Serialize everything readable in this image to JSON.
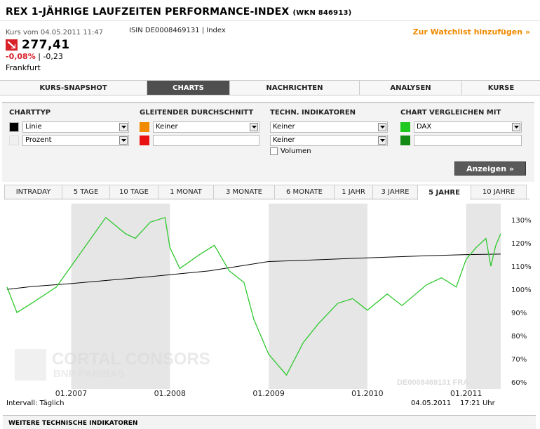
{
  "header": {
    "title": "REX 1-JÄHRIGE LAUFZEITEN PERFORMANCE-INDEX",
    "wkn": "(WKN 846913)",
    "watchlist_link": "Zur Watchlist hinzufügen »"
  },
  "quote": {
    "date": "Kurs vom 04.05.2011 11:47",
    "isin": "ISIN DE0008469131 | Index",
    "price": "277,41",
    "change_pct": "-0,08%",
    "change_sep": " | ",
    "change_abs": "-0,23",
    "exchange": "Frankfurt"
  },
  "tabs": [
    {
      "label": "KURS-SNAPSHOT",
      "active": false
    },
    {
      "label": "CHARTS",
      "active": true
    },
    {
      "label": "NACHRICHTEN",
      "active": false
    },
    {
      "label": "ANALYSEN",
      "active": false
    },
    {
      "label": "KURSE",
      "active": false
    }
  ],
  "settings": {
    "charttyp": {
      "heading": "CHARTTYP",
      "values": [
        "Linie",
        "Prozent"
      ],
      "colors": [
        "#000000",
        "#f0f0f0"
      ]
    },
    "gd": {
      "heading": "GLEITENDER DURCHSCHNITT",
      "value": "Keiner",
      "colors": [
        "#f08a00",
        "#e81010"
      ]
    },
    "indikatoren": {
      "heading": "TECHN. INDIKATOREN",
      "values": [
        "Keiner",
        "Keiner"
      ],
      "volume_label": "Volumen"
    },
    "vergleich": {
      "heading": "CHART VERGLEICHEN MIT",
      "value": "DAX",
      "colors": [
        "#1ec81e",
        "#138a13"
      ]
    },
    "show_button": "Anzeigen »"
  },
  "periods": [
    {
      "label": "INTRADAY",
      "active": false
    },
    {
      "label": "5 TAGE",
      "active": false
    },
    {
      "label": "10 TAGE",
      "active": false
    },
    {
      "label": "1 MONAT",
      "active": false
    },
    {
      "label": "3 MONATE",
      "active": false
    },
    {
      "label": "6 MONATE",
      "active": false
    },
    {
      "label": "1 JAHR",
      "active": false
    },
    {
      "label": "3 JAHRE",
      "active": false
    },
    {
      "label": "5 JAHRE",
      "active": true
    },
    {
      "label": "10 JAHRE",
      "active": false
    }
  ],
  "chart_data": {
    "type": "line",
    "x_ticks": [
      "01.2007",
      "01.2008",
      "01.2009",
      "01.2010",
      "01.2011"
    ],
    "y_ticks": [
      "130%",
      "120%",
      "110%",
      "100%",
      "90%",
      "80%",
      "70%",
      "60%"
    ],
    "ylim": [
      60,
      130
    ],
    "grid": false,
    "watermark": "CORTAL CONSORS",
    "watermark_sub": "BNP PARIBAS",
    "instrument_label": "DE0008469131 FRA",
    "x_start": 2006.35,
    "x_end": 2011.35,
    "shaded_years": [
      [
        2007.0,
        2008.0
      ],
      [
        2009.0,
        2010.0
      ],
      [
        2011.0,
        2011.35
      ]
    ],
    "series": [
      {
        "color": "#000000",
        "x": [
          2006.35,
          2006.6,
          2007.0,
          2007.4,
          2007.8,
          2008.0,
          2008.4,
          2008.7,
          2009.0,
          2009.4,
          2010.0,
          2010.6,
          2011.0,
          2011.35
        ],
        "y": [
          100.0,
          101.2,
          102.5,
          104.0,
          105.5,
          106.3,
          108.0,
          110.0,
          112.0,
          112.6,
          113.6,
          114.5,
          115.0,
          115.2
        ]
      },
      {
        "color": "#2ec82e",
        "x": [
          2006.35,
          2006.45,
          2006.6,
          2006.85,
          2007.0,
          2007.2,
          2007.35,
          2007.55,
          2007.65,
          2007.8,
          2007.95,
          2008.0,
          2008.1,
          2008.3,
          2008.45,
          2008.6,
          2008.75,
          2008.85,
          2008.95,
          2009.0,
          2009.18,
          2009.35,
          2009.5,
          2009.7,
          2009.85,
          2010.0,
          2010.2,
          2010.35,
          2010.6,
          2010.75,
          2010.9,
          2011.0,
          2011.1,
          2011.2,
          2011.25,
          2011.3,
          2011.35
        ],
        "y": [
          101.0,
          90.0,
          94.0,
          101.0,
          110.0,
          122.0,
          131.0,
          124.0,
          122.0,
          129.0,
          131.0,
          118.0,
          109.0,
          115.0,
          119.0,
          108.0,
          103.0,
          87.0,
          77.0,
          72.0,
          63.0,
          77.0,
          85.0,
          94.0,
          96.0,
          91.0,
          98.0,
          93.0,
          102.0,
          105.0,
          101.0,
          113.0,
          118.0,
          122.0,
          110.0,
          119.0,
          124.0
        ]
      }
    ]
  },
  "footer": {
    "interval": "Intervall: Täglich",
    "date": "04.05.2011",
    "time": "17:21 Uhr",
    "section_title": "WEITERE TECHNISCHE INDIKATOREN"
  }
}
